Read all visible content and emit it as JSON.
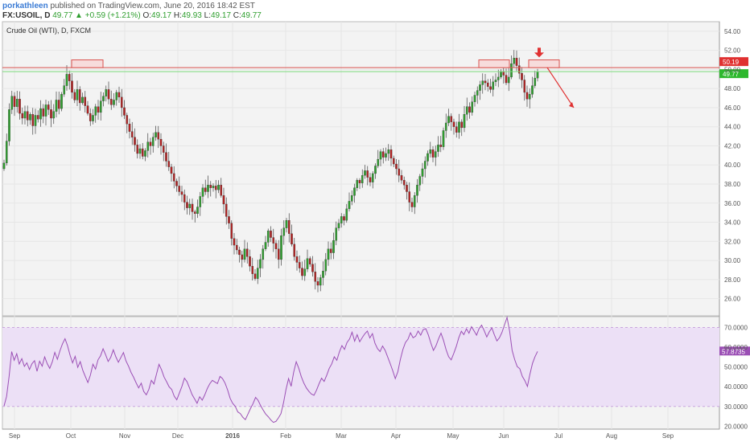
{
  "header": {
    "user": "porkathleen",
    "published": "published on TradingView.com, June 20, 2016 18:42 EST",
    "symbol": "FX:USOIL, D",
    "last": "49.77",
    "change": "▲ +0.59 (+1.21%)",
    "o_label": "O:",
    "o": "49.17",
    "h_label": "H:",
    "h": "49.93",
    "l_label": "L:",
    "l": "49.17",
    "c_label": "C:",
    "c": "49.77"
  },
  "chart_data": [
    {
      "type": "candlestick",
      "title": "Crude Oil (WTI), D, FXCM",
      "y_ticks": [
        "54.00",
        "52.00",
        "50.00",
        "48.00",
        "46.00",
        "44.00",
        "42.00",
        "40.00",
        "38.00",
        "36.00",
        "34.00",
        "32.00",
        "30.00",
        "28.00",
        "26.00"
      ],
      "ylim": [
        24.2,
        55.0
      ],
      "x_labels": [
        "Sep",
        "Oct",
        "Nov",
        "Dec",
        "2016",
        "Feb",
        "Mar",
        "Apr",
        "May",
        "Jun",
        "Jul",
        "Aug",
        "Sep"
      ],
      "resistance_level": 50.19,
      "last_price": 49.77,
      "price_badges": [
        {
          "label": "50.19",
          "value": 50.19,
          "color": "#e03131"
        },
        {
          "label": "49.77",
          "value": 49.77,
          "color": "#2eb82e"
        }
      ],
      "close_series": [
        {
          "month": "Sep",
          "values": [
            40.2,
            42.5,
            45.8,
            47.2,
            46.1,
            46.9,
            45.4,
            44.9,
            45.6,
            44.7,
            45.3,
            44.1,
            45.2,
            44.8,
            45.9,
            45.1,
            46.3,
            45.8,
            44.9,
            45.6,
            46.8,
            45.9
          ]
        },
        {
          "month": "Oct",
          "values": [
            47.4,
            48.3,
            49.5,
            48.8,
            47.6,
            46.8,
            47.9,
            46.5,
            47.1,
            46.2,
            45.4,
            44.6,
            45.2,
            46.1,
            45.5,
            46.7,
            47.2,
            47.9,
            46.9,
            46.3,
            46.8,
            47.6
          ]
        },
        {
          "month": "Nov",
          "values": [
            47.1,
            46.0,
            45.2,
            44.3,
            43.5,
            42.9,
            42.1,
            41.2,
            41.7,
            40.9,
            41.5,
            42.4,
            42.0,
            42.9,
            43.4,
            42.7,
            42.0,
            41.3,
            40.4,
            39.8,
            39.1
          ]
        },
        {
          "month": "Dec",
          "values": [
            38.3,
            37.8,
            37.2,
            36.9,
            36.1,
            35.5,
            35.9,
            35.1,
            34.9,
            35.6,
            36.7,
            37.6,
            37.2,
            37.9,
            37.6,
            37.8,
            37.4,
            37.9,
            36.8,
            35.9,
            34.6
          ]
        },
        {
          "month": "2016",
          "values": [
            33.9,
            32.3,
            31.6,
            31.1,
            30.6,
            30.1,
            31.2,
            30.4,
            29.4,
            28.6,
            28.1,
            29.2,
            30.1,
            31.2,
            31.9,
            33.1,
            32.4,
            31.8,
            31.2,
            30.1
          ]
        },
        {
          "month": "Feb",
          "values": [
            32.6,
            33.4,
            34.2,
            32.8,
            31.7,
            30.4,
            29.8,
            29.2,
            28.4,
            29.1,
            30.2,
            29.6,
            28.8,
            27.8,
            27.4,
            28.2,
            28.9,
            30.1,
            31.2,
            30.8
          ]
        },
        {
          "month": "Mar",
          "values": [
            32.1,
            33.4,
            33.9,
            34.6,
            34.2,
            35.4,
            36.2,
            36.8,
            37.6,
            38.4,
            38.1,
            38.9,
            39.4,
            38.7,
            38.2,
            39.1,
            39.9,
            40.6,
            41.4,
            40.8,
            41.2,
            41.6
          ]
        },
        {
          "month": "Apr",
          "values": [
            40.7,
            40.1,
            39.6,
            38.9,
            38.4,
            37.9,
            37.2,
            36.1,
            35.6,
            36.8,
            37.9,
            38.8,
            39.6,
            40.4,
            41.2,
            41.6,
            40.8,
            41.4,
            42.1,
            41.9
          ]
        },
        {
          "month": "May",
          "values": [
            43.6,
            44.4,
            45.1,
            44.5,
            44.0,
            43.4,
            44.5,
            43.9,
            45.3,
            46.1,
            45.5,
            46.6,
            47.3,
            47.8,
            48.4,
            48.8,
            48.6,
            48.2,
            47.9,
            48.7,
            48.9
          ]
        },
        {
          "month": "Jun",
          "values": [
            49.2,
            49.8,
            49.4,
            48.6,
            49.2,
            50.6,
            51.2,
            50.4,
            49.6,
            48.9,
            47.6,
            46.9,
            47.4,
            48.3,
            49.1,
            49.77
          ]
        }
      ]
    },
    {
      "type": "line",
      "title": "RSI",
      "y_ticks": [
        "70.0000",
        "60.0000",
        "50.0000",
        "40.0000",
        "30.0000",
        "20.0000"
      ],
      "ylim": [
        18.5,
        75.5
      ],
      "band": [
        30,
        70
      ],
      "last_value": "57.8735",
      "values": [
        30.2,
        35.1,
        45.2,
        57.8,
        53.4,
        56.7,
        51.5,
        54.2,
        50.3,
        52.1,
        48.7,
        51.6,
        53.2,
        47.8,
        52.9,
        50.4,
        55.1,
        51.7,
        49.3,
        52.6,
        57.4,
        53.9,
        58.2,
        61.7,
        64.3,
        60.8,
        55.9,
        52.1,
        55.4,
        49.8,
        52.7,
        48.3,
        45.2,
        42.1,
        45.8,
        51.4,
        48.9,
        53.6,
        55.7,
        59.2,
        56.1,
        52.8,
        54.9,
        58.7,
        55.2,
        52.4,
        54.8,
        57.3,
        53.1,
        50.4,
        47.2,
        44.8,
        41.9,
        39.4,
        41.8,
        37.6,
        35.9,
        38.7,
        43.2,
        41.4,
        46.3,
        51.3,
        48.6,
        44.9,
        42.5,
        39.9,
        38.6,
        35.2,
        33.4,
        36.7,
        40.1,
        44.3,
        42.6,
        39.4,
        36.1,
        33.8,
        31.6,
        34.9,
        33.2,
        35.8,
        39.1,
        41.5,
        43.2,
        42.4,
        41.6,
        45.2,
        44.1,
        41.8,
        38.4,
        34.1,
        31.6,
        30.1,
        27.2,
        26.4,
        24.5,
        23.3,
        26.1,
        28.9,
        31.4,
        34.6,
        33.1,
        30.4,
        28.2,
        26.1,
        24.8,
        23.2,
        21.9,
        22.4,
        24.2,
        26.3,
        31.8,
        38.6,
        44.1,
        40.2,
        47.3,
        52.6,
        49.4,
        45.1,
        41.9,
        39.4,
        37.6,
        36.3,
        35.7,
        38.2,
        41.5,
        44.3,
        42.7,
        45.8,
        49.3,
        51.6,
        55.2,
        53.4,
        57.6,
        60.8,
        58.9,
        62.4,
        64.2,
        67.6,
        63.1,
        66.4,
        62.8,
        64.9,
        66.8,
        68.2,
        64.7,
        66.9,
        62.1,
        59.3,
        57.8,
        60.6,
        58.4,
        55.1,
        51.7,
        48.2,
        44.1,
        47.6,
        53.8,
        58.9,
        62.4,
        64.1,
        67.3,
        64.8,
        65.6,
        68.2,
        66.1,
        68.9,
        69.4,
        66.3,
        62.1,
        58.4,
        60.7,
        64.2,
        67.1,
        63.4,
        58.8,
        55.2,
        53.6,
        56.8,
        60.4,
        64.8,
        68.1,
        66.4,
        69.3,
        67.1,
        70.4,
        68.3,
        66.1,
        69.5,
        71.2,
        68.4,
        65.2,
        67.8,
        69.8,
        66.3,
        63.2,
        64.8,
        67.5,
        71.4,
        75.1,
        68.2,
        58.4,
        53.7,
        50.2,
        49.1,
        45.2,
        43.1,
        40.1,
        46.3,
        51.8,
        55.2,
        57.8735
      ]
    }
  ],
  "annotations": {
    "boxes": [
      {
        "month": "Oct",
        "top": 51.0,
        "bottom": 50.19
      },
      {
        "month": "May",
        "top": 51.0,
        "bottom": 50.19
      },
      {
        "month": "Jun",
        "top": 51.0,
        "bottom": 50.19
      }
    ],
    "down_arrow": {
      "month": "Jun",
      "value": 51.6
    },
    "projection_arrow": {
      "from": 50.2,
      "to": 46.0
    }
  },
  "colors": {
    "up": "#2e9e2e",
    "down": "#b22222",
    "resistance": "#d9534f",
    "last_price_line": "#7ddc7d",
    "rsi_line": "#9b4fb5",
    "rsi_band": "#ece0f6",
    "grid": "#e6e6e6",
    "pane_bg": "#f3f3f3"
  }
}
